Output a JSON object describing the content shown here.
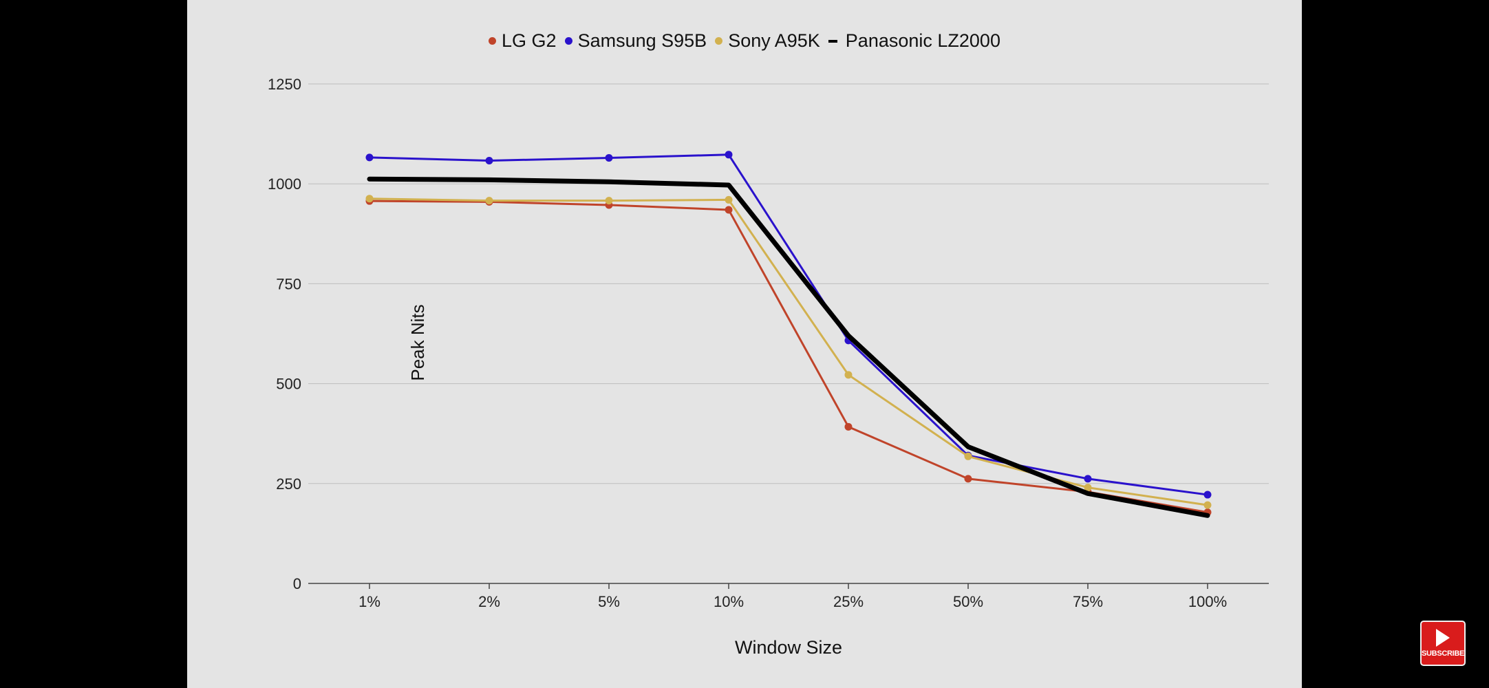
{
  "chart_data": {
    "type": "line",
    "title": "",
    "xlabel": "Window Size",
    "ylabel": "Peak Nits",
    "categories": [
      "1%",
      "2%",
      "5%",
      "10%",
      "25%",
      "50%",
      "75%",
      "100%"
    ],
    "ylim": [
      0,
      1250
    ],
    "yticks": [
      "0",
      "250",
      "500",
      "750",
      "1000",
      "1250"
    ],
    "ytick_values": [
      0,
      250,
      500,
      750,
      1000,
      1250
    ],
    "grid": true,
    "legend_position": "top-center",
    "series": [
      {
        "name": "LG G2",
        "color": "#c0442a",
        "marker": "dot",
        "values": [
          957,
          955,
          947,
          935,
          392,
          262,
          229,
          178
        ]
      },
      {
        "name": "Samsung S95B",
        "color": "#2a12cc",
        "marker": "dot",
        "values": [
          1066,
          1058,
          1065,
          1073,
          608,
          320,
          262,
          222
        ]
      },
      {
        "name": "Sony A95K",
        "color": "#d2b14f",
        "marker": "dot",
        "values": [
          963,
          958,
          958,
          960,
          522,
          318,
          240,
          196
        ]
      },
      {
        "name": "Panasonic LZ2000",
        "color": "#000000",
        "marker": "none",
        "values": [
          1012,
          1010,
          1005,
          997,
          620,
          342,
          225,
          170
        ]
      }
    ]
  },
  "overlay": {
    "subscribe_label": "SUBSCRIBE"
  }
}
